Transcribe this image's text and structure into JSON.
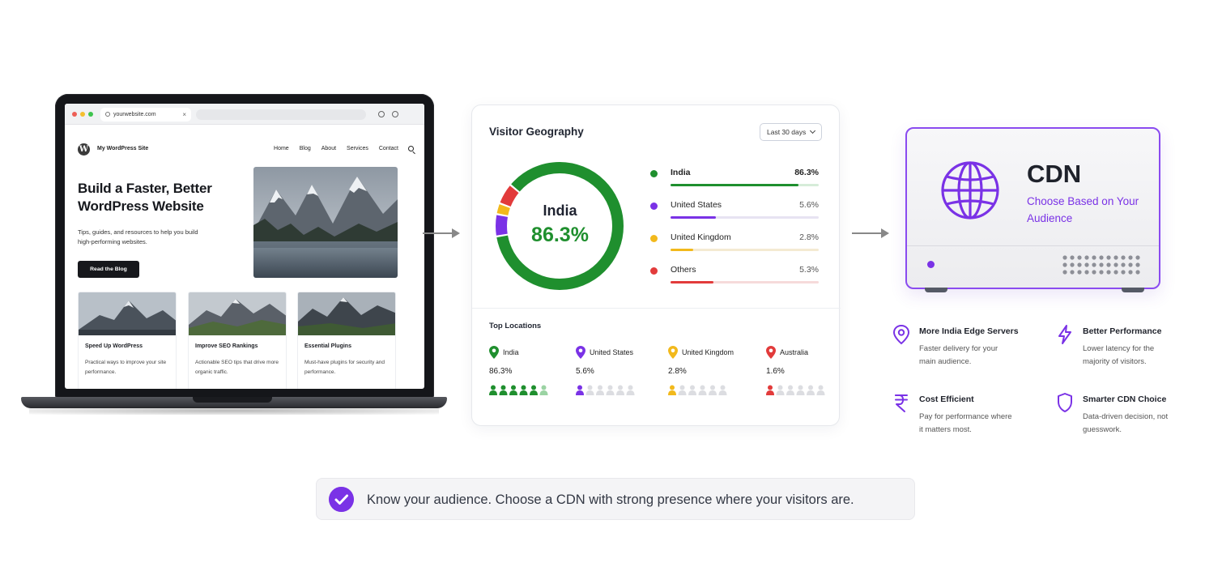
{
  "browser": {
    "tab_label": "yourwebsite.com",
    "tab_close": "×"
  },
  "website": {
    "site_name": "My WordPress Site",
    "logo_letter": "W",
    "nav": [
      "Home",
      "Blog",
      "About",
      "Services",
      "Contact"
    ],
    "hero_title": "Build a Faster, Better WordPress Website",
    "hero_subtitle": "Tips, guides, and resources to help you build high-performing websites.",
    "hero_button": "Read the Blog",
    "cards": [
      {
        "title": "Speed Up WordPress",
        "desc": "Practical ways to improve your site performance."
      },
      {
        "title": "Improve SEO Rankings",
        "desc": "Actionable SEO tips that drive more organic traffic."
      },
      {
        "title": "Essential Plugins",
        "desc": "Must-have plugins for security and performance."
      }
    ]
  },
  "geography": {
    "title": "Visitor Geography",
    "range_label": "Last 30 days",
    "donut_label": "India",
    "donut_value": "86.3%",
    "legend": [
      {
        "name": "India",
        "value": "86.3%",
        "percent": 86.3,
        "color": "#1f8f2e",
        "track": "#d6ecd9"
      },
      {
        "name": "United States",
        "value": "5.6%",
        "percent": 5.6,
        "color": "#7a32e6",
        "track": "#e7e3f2"
      },
      {
        "name": "United Kingdom",
        "value": "2.8%",
        "percent": 2.8,
        "color": "#f2b91c",
        "track": "#f4ead2"
      },
      {
        "name": "Others",
        "value": "5.3%",
        "percent": 5.3,
        "color": "#e23b3b",
        "track": "#f6dada"
      }
    ],
    "top_locations_title": "Top Locations",
    "top_locations": [
      {
        "name": "India",
        "value": "86.3%",
        "color": "#1f8f2e"
      },
      {
        "name": "United States",
        "value": "5.6%",
        "color": "#7a32e6"
      },
      {
        "name": "United Kingdom",
        "value": "2.8%",
        "color": "#f2b91c"
      },
      {
        "name": "Australia",
        "value": "1.6%",
        "color": "#e23b3b"
      }
    ]
  },
  "chart_data": {
    "type": "pie",
    "categories": [
      "India",
      "United States",
      "United Kingdom",
      "Others"
    ],
    "values": [
      86.3,
      5.6,
      2.8,
      5.3
    ],
    "title": "Visitor Geography"
  },
  "cdn": {
    "title": "CDN",
    "subtitle": "Choose Based on Your Audience",
    "accent": "#7a32e6",
    "features": [
      {
        "title": "More India Edge Servers",
        "desc": "Faster delivery for your main audience.",
        "icon": "location-pin-icon"
      },
      {
        "title": "Better Performance",
        "desc": "Lower latency for the majority of visitors.",
        "icon": "lightning-icon"
      },
      {
        "title": "Cost Efficient",
        "desc": "Pay for performance where it matters most.",
        "icon": "rupee-icon"
      },
      {
        "title": "Smarter CDN Choice",
        "desc": "Data-driven decision, not guesswork.",
        "icon": "shield-icon"
      }
    ]
  },
  "banner": {
    "text": "Know your audience. Choose a CDN with strong presence where your visitors are."
  }
}
